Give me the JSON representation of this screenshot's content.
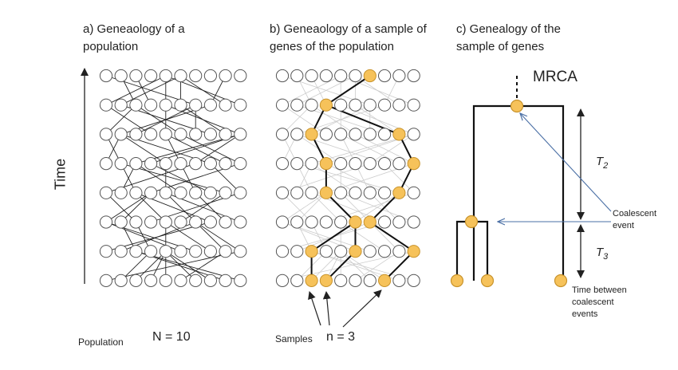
{
  "panel_a": {
    "title": "a) Geneaology  of a population",
    "population_caption": "Population",
    "N_label": "N = 10"
  },
  "panel_b": {
    "title": "b) Geneaology  of a sample of genes of the population",
    "samples_caption": "Samples",
    "n_label": "n = 3"
  },
  "panel_c": {
    "title": "c) Genealogy  of the sample of genes",
    "mrca_label": "MRCA",
    "t2_label": "T2",
    "t3_label": "T3",
    "coalescent_event_label": "Coalescent event",
    "time_between_label": "Time between coalescent events"
  },
  "time_axis_label": "Time",
  "colors": {
    "sample_node_fill": "#f6c25a",
    "sample_node_stroke": "#c8932c",
    "empty_node_stroke": "#555555",
    "population_edge": "#222222",
    "faded_edge": "#cccccc",
    "lineage_edge": "#111111",
    "annotation_arrow": "#4a6fa5"
  }
}
